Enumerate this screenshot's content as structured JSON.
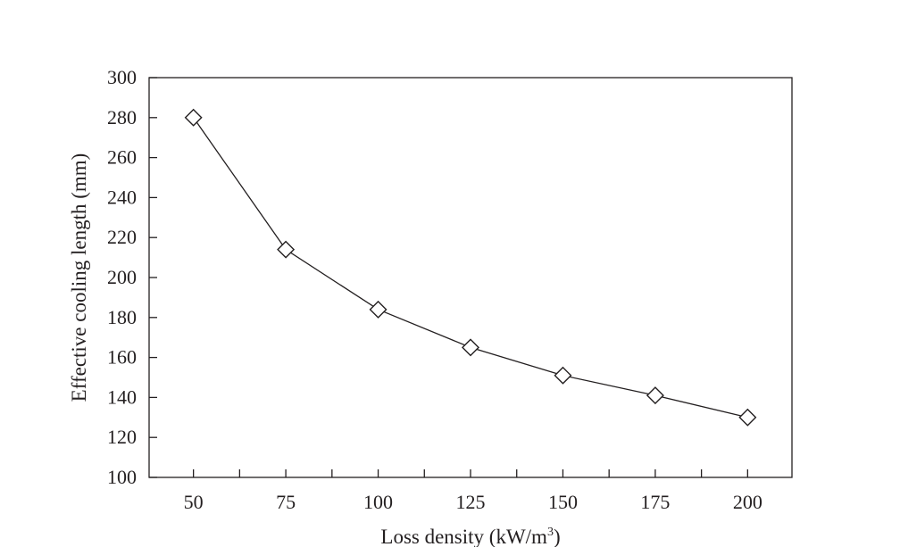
{
  "chart_data": {
    "type": "line",
    "title": "",
    "xlabel": "Loss density (kW/m",
    "xlabel_sup": "3",
    "xlabel_end": ")",
    "ylabel": "Effective cooling length (mm)",
    "x": [
      50,
      75,
      100,
      125,
      150,
      175,
      200
    ],
    "y": [
      280,
      214,
      184,
      165,
      151,
      141,
      130
    ],
    "xlim": [
      38,
      212
    ],
    "ylim": [
      100,
      300
    ],
    "xticks": [
      50,
      75,
      100,
      125,
      150,
      175,
      200
    ],
    "xtick_labels": [
      "50",
      "75",
      "100",
      "125",
      "150",
      "175",
      "200"
    ],
    "yticks": [
      100,
      120,
      140,
      160,
      180,
      200,
      220,
      240,
      260,
      280,
      300
    ],
    "ytick_labels": [
      "100",
      "120",
      "140",
      "160",
      "180",
      "200",
      "220",
      "240",
      "260",
      "280",
      "300"
    ],
    "marker": "diamond-open",
    "grid": false,
    "colors": {
      "line": "#231f20",
      "marker_fill": "#ffffff",
      "frame": "#231f20"
    }
  }
}
